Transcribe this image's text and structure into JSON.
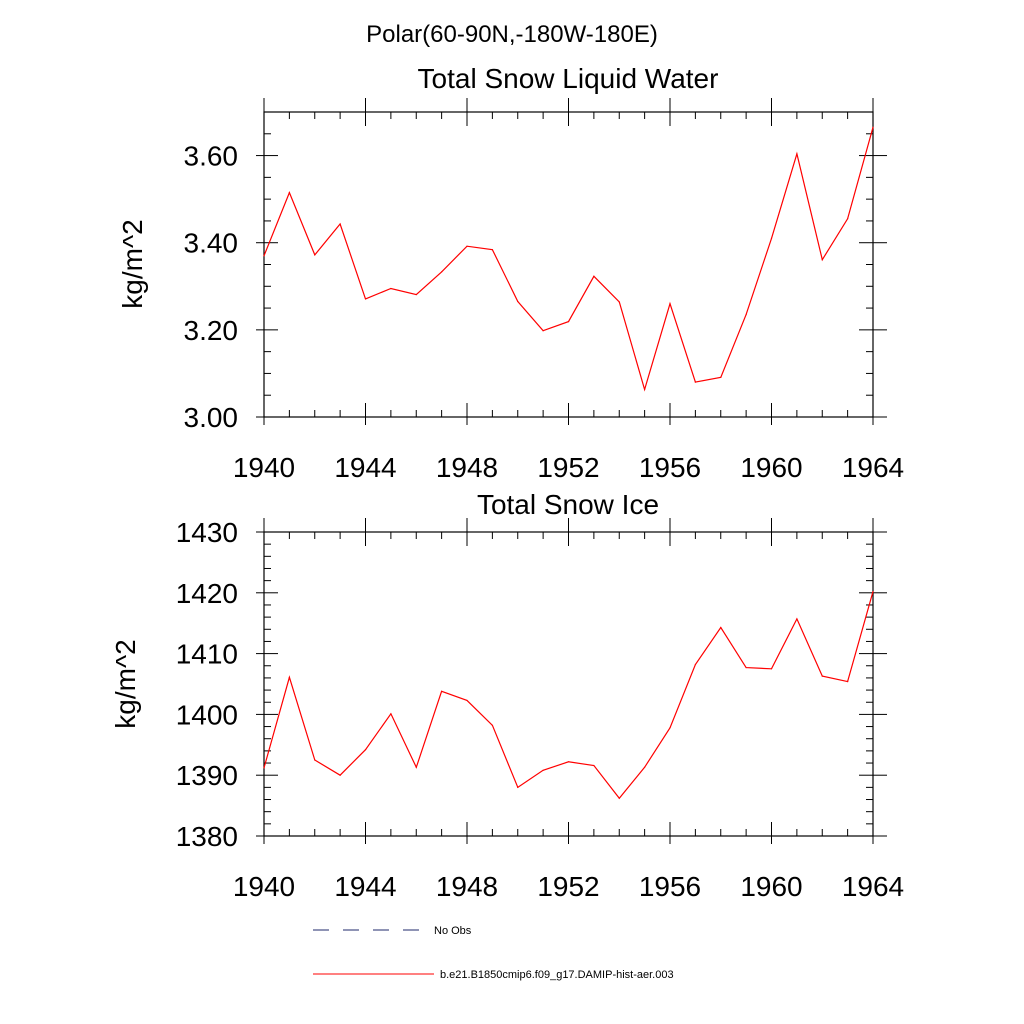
{
  "page_title": "Polar(60-90N,-180W-180E)",
  "chart_data": [
    {
      "type": "line",
      "title": "Total Snow Liquid Water",
      "xlabel": "",
      "ylabel": "kg/m^2",
      "xlim": [
        1940,
        1964
      ],
      "ylim": [
        3.0,
        3.7
      ],
      "x_ticks": [
        "1940",
        "1944",
        "1948",
        "1952",
        "1956",
        "1960",
        "1964"
      ],
      "y_ticks": [
        "3.00",
        "3.20",
        "3.40",
        "3.60"
      ],
      "grid": false,
      "x": [
        1940,
        1941,
        1942,
        1943,
        1944,
        1945,
        1946,
        1947,
        1948,
        1949,
        1950,
        1951,
        1952,
        1953,
        1954,
        1955,
        1956,
        1957,
        1958,
        1959,
        1960,
        1961,
        1962,
        1963,
        1964
      ],
      "series": [
        {
          "name": "b.e21.B1850cmip6.f09_g17.DAMIP-hist-aer.003",
          "color": "#ff0000",
          "values": [
            3.37,
            3.515,
            3.372,
            3.443,
            3.271,
            3.295,
            3.281,
            3.333,
            3.392,
            3.384,
            3.265,
            3.198,
            3.219,
            3.323,
            3.264,
            3.063,
            3.26,
            3.08,
            3.091,
            3.235,
            3.41,
            3.604,
            3.361,
            3.455,
            3.665
          ]
        }
      ]
    },
    {
      "type": "line",
      "title": "Total Snow Ice",
      "xlabel": "",
      "ylabel": "kg/m^2",
      "xlim": [
        1940,
        1964
      ],
      "ylim": [
        1380,
        1430
      ],
      "x_ticks": [
        "1940",
        "1944",
        "1948",
        "1952",
        "1956",
        "1960",
        "1964"
      ],
      "y_ticks": [
        "1380",
        "1390",
        "1400",
        "1410",
        "1420",
        "1430"
      ],
      "grid": false,
      "x": [
        1940,
        1941,
        1942,
        1943,
        1944,
        1945,
        1946,
        1947,
        1948,
        1949,
        1950,
        1951,
        1952,
        1953,
        1954,
        1955,
        1956,
        1957,
        1958,
        1959,
        1960,
        1961,
        1962,
        1963,
        1964
      ],
      "series": [
        {
          "name": "b.e21.B1850cmip6.f09_g17.DAMIP-hist-aer.003",
          "color": "#ff0000",
          "values": [
            1391.2,
            1406.1,
            1392.5,
            1390.0,
            1394.2,
            1400.1,
            1391.3,
            1403.8,
            1402.3,
            1398.2,
            1388.0,
            1390.8,
            1392.2,
            1391.6,
            1386.2,
            1391.3,
            1397.8,
            1408.2,
            1414.3,
            1407.7,
            1407.5,
            1415.7,
            1406.3,
            1405.4,
            1420.2
          ]
        }
      ]
    }
  ],
  "legend": {
    "placement": "bottom",
    "items": [
      {
        "label": "No Obs",
        "style": "dashed",
        "color": "#1f2a6b"
      },
      {
        "label": "b.e21.B1850cmip6.f09_g17.DAMIP-hist-aer.003",
        "style": "solid",
        "color": "#ff0000"
      }
    ]
  }
}
